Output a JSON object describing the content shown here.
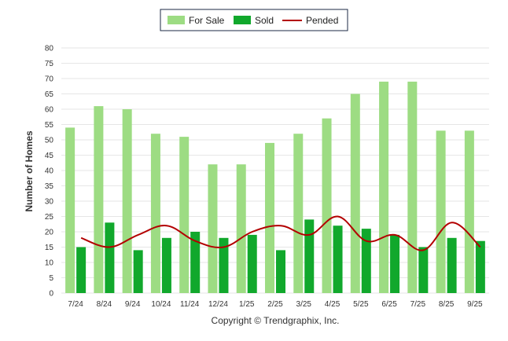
{
  "chart_data": {
    "type": "bar",
    "categories": [
      "7/24",
      "8/24",
      "9/24",
      "10/24",
      "11/24",
      "12/24",
      "1/25",
      "2/25",
      "3/25",
      "4/25",
      "5/25",
      "6/25",
      "7/25",
      "8/25",
      "9/25"
    ],
    "series": [
      {
        "name": "For Sale",
        "kind": "bar",
        "color": "#9ddc83",
        "values": [
          54,
          61,
          60,
          52,
          51,
          42,
          42,
          49,
          52,
          57,
          65,
          69,
          69,
          53,
          53
        ]
      },
      {
        "name": "Sold",
        "kind": "bar",
        "color": "#11a82c",
        "values": [
          15,
          23,
          14,
          18,
          20,
          18,
          19,
          14,
          24,
          22,
          21,
          19,
          15,
          18,
          17
        ]
      },
      {
        "name": "Pended",
        "kind": "line",
        "color": "#b30000",
        "values": [
          18,
          15,
          19,
          22,
          17,
          15,
          20,
          22,
          19,
          25,
          17,
          19,
          14,
          23,
          15
        ]
      }
    ],
    "xlabel": "",
    "ylabel": "Number of Homes",
    "ylim": [
      0,
      80
    ],
    "yticks": [
      0,
      5,
      10,
      15,
      20,
      25,
      30,
      35,
      40,
      45,
      50,
      55,
      60,
      65,
      70,
      75,
      80
    ],
    "grid": true,
    "legend": "top-center",
    "caption": "Copyright © Trendgraphix, Inc."
  }
}
